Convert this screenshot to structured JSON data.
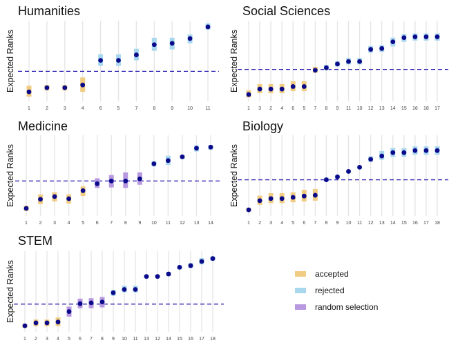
{
  "colors": {
    "accepted": "#f0cd82",
    "rejected": "#a9d8ee",
    "random_selection": "#b899e0",
    "point": "#0a0a8a",
    "dashed": "#2a1fb0",
    "grid": "#e6e6e6"
  },
  "legend": [
    {
      "key": "accepted",
      "label": "accepted"
    },
    {
      "key": "rejected",
      "label": "rejected"
    },
    {
      "key": "random_selection",
      "label": "random selection"
    }
  ],
  "chart_data": [
    {
      "type": "scatter",
      "title": "Humanities",
      "ylabel": "Expected Ranks",
      "ylim": [
        0,
        11
      ],
      "threshold": 4,
      "categories": [
        "1",
        "2",
        "3",
        "4",
        "6",
        "5",
        "7",
        "8",
        "9",
        "10",
        "11"
      ],
      "values": [
        1.0,
        1.6,
        1.6,
        2.0,
        5.6,
        5.6,
        6.4,
        7.9,
        8.1,
        8.8,
        10.5
      ],
      "ranges": [
        [
          0.3,
          1.9
        ],
        [
          1.2,
          2.0
        ],
        [
          1.2,
          2.0
        ],
        [
          1.0,
          3.1
        ],
        [
          4.8,
          6.5
        ],
        [
          4.8,
          6.5
        ],
        [
          5.6,
          7.3
        ],
        [
          7.0,
          8.9
        ],
        [
          7.2,
          8.9
        ],
        [
          8.1,
          9.4
        ],
        [
          10.1,
          11.0
        ]
      ],
      "status": [
        "accepted",
        "accepted",
        "accepted",
        "accepted",
        "rejected",
        "rejected",
        "rejected",
        "rejected",
        "rejected",
        "rejected",
        "rejected"
      ]
    },
    {
      "type": "scatter",
      "title": "Social Sciences",
      "ylabel": "Expected Ranks",
      "ylim": [
        0,
        18
      ],
      "threshold": 7,
      "categories": [
        "1",
        "3",
        "2",
        "4",
        "6",
        "5",
        "7",
        "8",
        "9",
        "11",
        "10",
        "12",
        "13",
        "14",
        "15",
        "16",
        "18",
        "17"
      ],
      "values": [
        1.0,
        2.3,
        2.3,
        2.3,
        2.9,
        2.9,
        6.8,
        7.4,
        8.3,
        8.9,
        8.9,
        11.8,
        12.0,
        13.6,
        14.6,
        14.8,
        14.8,
        14.8
      ],
      "ranges": [
        [
          0.3,
          2.0
        ],
        [
          1.3,
          3.5
        ],
        [
          1.3,
          3.5
        ],
        [
          1.3,
          3.5
        ],
        [
          1.8,
          4.2
        ],
        [
          1.8,
          4.2
        ],
        [
          6.2,
          7.6
        ],
        [
          6.8,
          8.1
        ],
        [
          7.7,
          9.0
        ],
        [
          8.2,
          9.7
        ],
        [
          8.2,
          9.7
        ],
        [
          11.0,
          12.6
        ],
        [
          11.2,
          12.8
        ],
        [
          12.5,
          14.6
        ],
        [
          13.6,
          15.5
        ],
        [
          13.9,
          15.6
        ],
        [
          13.9,
          15.6
        ],
        [
          13.9,
          15.6
        ]
      ],
      "status": [
        "accepted",
        "accepted",
        "accepted",
        "accepted",
        "accepted",
        "accepted",
        "accepted",
        "rejected",
        "rejected",
        "rejected",
        "rejected",
        "rejected",
        "rejected",
        "rejected",
        "rejected",
        "rejected",
        "rejected",
        "rejected"
      ]
    },
    {
      "type": "scatter",
      "title": "Medicine",
      "ylabel": "Expected Ranks",
      "ylim": [
        0,
        14
      ],
      "threshold": 6,
      "categories": [
        "1",
        "2",
        "3",
        "4",
        "5",
        "6",
        "7",
        "8",
        "9",
        "10",
        "11",
        "12",
        "13",
        "14"
      ],
      "values": [
        0.9,
        2.6,
        3.1,
        2.7,
        4.2,
        5.5,
        6.0,
        6.0,
        6.4,
        9.2,
        9.8,
        10.5,
        12.1,
        12.3
      ],
      "ranges": [
        [
          0.4,
          1.4
        ],
        [
          1.7,
          3.5
        ],
        [
          2.2,
          3.9
        ],
        [
          1.8,
          3.5
        ],
        [
          3.2,
          5.0
        ],
        [
          4.7,
          6.5
        ],
        [
          4.8,
          7.1
        ],
        [
          4.7,
          7.6
        ],
        [
          5.3,
          7.6
        ],
        [
          8.7,
          9.7
        ],
        [
          9.0,
          10.7
        ],
        [
          10.1,
          10.8
        ],
        [
          11.5,
          12.6
        ],
        [
          11.8,
          12.7
        ]
      ],
      "status": [
        "accepted",
        "accepted",
        "accepted",
        "accepted",
        "accepted",
        "random_selection",
        "random_selection",
        "random_selection",
        "random_selection",
        "rejected",
        "rejected",
        "rejected",
        "rejected",
        "rejected"
      ]
    },
    {
      "type": "scatter",
      "title": "Biology",
      "ylabel": "Expected Ranks",
      "ylim": [
        0,
        18
      ],
      "threshold": 8,
      "categories": [
        "1",
        "2",
        "3",
        "4",
        "5",
        "6",
        "7",
        "8",
        "9",
        "10",
        "11",
        "12",
        "13",
        "14",
        "15",
        "16",
        "17",
        "18"
      ],
      "values": [
        0.8,
        3.0,
        3.5,
        3.5,
        3.8,
        4.1,
        4.3,
        8.0,
        8.7,
        10.0,
        11.0,
        12.9,
        13.7,
        14.5,
        14.5,
        15.0,
        15.0,
        15.0
      ],
      "ranges": [
        [
          0.4,
          1.3
        ],
        [
          2.0,
          4.2
        ],
        [
          2.4,
          4.8
        ],
        [
          2.4,
          4.8
        ],
        [
          2.6,
          5.0
        ],
        [
          2.8,
          5.6
        ],
        [
          3.0,
          5.8
        ],
        [
          7.6,
          8.5
        ],
        [
          8.3,
          9.1
        ],
        [
          9.6,
          10.4
        ],
        [
          10.6,
          11.4
        ],
        [
          12.3,
          13.6
        ],
        [
          12.8,
          14.9
        ],
        [
          13.5,
          15.6
        ],
        [
          13.5,
          15.6
        ],
        [
          14.0,
          16.0
        ],
        [
          14.0,
          16.0
        ],
        [
          14.0,
          16.0
        ]
      ],
      "status": [
        "accepted",
        "accepted",
        "accepted",
        "accepted",
        "accepted",
        "accepted",
        "accepted",
        "rejected",
        "rejected",
        "rejected",
        "rejected",
        "rejected",
        "rejected",
        "rejected",
        "rejected",
        "rejected",
        "rejected",
        "rejected"
      ]
    },
    {
      "type": "scatter",
      "title": "STEM",
      "ylabel": "Expected Ranks",
      "ylim": [
        0,
        18
      ],
      "threshold": 6,
      "categories": [
        "1",
        "2",
        "3",
        "4",
        "5",
        "6",
        "7",
        "8",
        "9",
        "10",
        "11",
        "13",
        "12",
        "14",
        "15",
        "16",
        "17",
        "18"
      ],
      "values": [
        0.8,
        1.5,
        1.5,
        1.7,
        4.2,
        6.1,
        6.3,
        6.5,
        8.7,
        9.5,
        9.5,
        12.6,
        12.6,
        13.2,
        14.8,
        15.2,
        16.2,
        16.9
      ],
      "ranges": [
        [
          0.3,
          1.3
        ],
        [
          0.7,
          2.3
        ],
        [
          0.7,
          2.3
        ],
        [
          0.7,
          2.8
        ],
        [
          3.0,
          5.4
        ],
        [
          5.0,
          7.3
        ],
        [
          5.0,
          7.4
        ],
        [
          5.2,
          7.7
        ],
        [
          8.0,
          9.4
        ],
        [
          8.8,
          10.4
        ],
        [
          8.8,
          10.4
        ],
        [
          12.2,
          13.0
        ],
        [
          12.2,
          13.0
        ],
        [
          12.7,
          13.7
        ],
        [
          14.3,
          15.3
        ],
        [
          14.6,
          15.8
        ],
        [
          15.5,
          17.0
        ],
        [
          16.4,
          17.4
        ]
      ],
      "status": [
        "accepted",
        "accepted",
        "accepted",
        "accepted",
        "random_selection",
        "random_selection",
        "random_selection",
        "random_selection",
        "rejected",
        "rejected",
        "rejected",
        "rejected",
        "rejected",
        "rejected",
        "rejected",
        "rejected",
        "rejected",
        "rejected"
      ]
    }
  ]
}
